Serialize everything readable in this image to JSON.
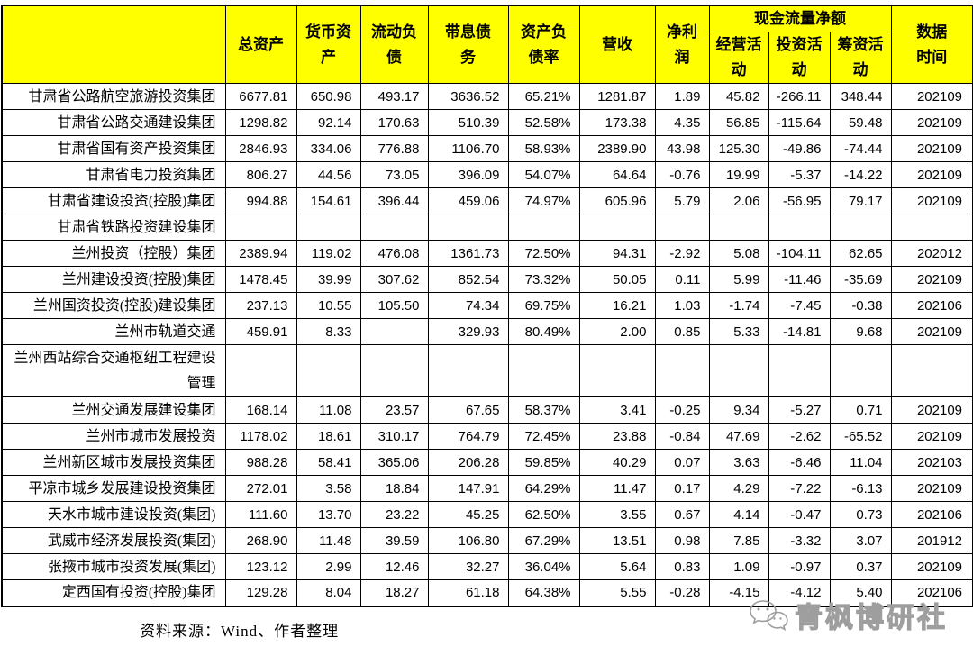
{
  "colors": {
    "header_bg": "#FFFF00",
    "border": "#000000",
    "text": "#000000",
    "watermark_gray": "#9E9E9E"
  },
  "table": {
    "corner_label": "",
    "headers": {
      "total_assets": "总资产",
      "monetary_funds": "货币资产",
      "current_liabilities": "流动负债",
      "interest_bearing_debt": "带息债务",
      "debt_ratio": "资产负债率",
      "revenue": "营收",
      "net_profit": "净利润",
      "cash_flow_group": "现金流量净额",
      "operating_activity": "经营活动",
      "investing_activity": "投资活动",
      "financing_activity": "筹资活动",
      "data_date": "数据时间"
    },
    "rows": [
      {
        "name": "甘肃省公路航空旅游投资集团",
        "values": [
          "6677.81",
          "650.98",
          "493.17",
          "3636.52",
          "65.21%",
          "1281.87",
          "1.89",
          "45.82",
          "-266.11",
          "348.44",
          "202109"
        ]
      },
      {
        "name": "甘肃省公路交通建设集团",
        "values": [
          "1298.82",
          "92.14",
          "170.63",
          "510.39",
          "52.58%",
          "173.38",
          "4.35",
          "56.85",
          "-115.64",
          "59.48",
          "202109"
        ]
      },
      {
        "name": "甘肃省国有资产投资集团",
        "values": [
          "2846.93",
          "334.06",
          "776.88",
          "1106.70",
          "58.93%",
          "2389.90",
          "43.98",
          "125.30",
          "-49.86",
          "-74.44",
          "202109"
        ]
      },
      {
        "name": "甘肃省电力投资集团",
        "values": [
          "806.27",
          "44.56",
          "73.05",
          "396.09",
          "54.07%",
          "64.64",
          "-0.76",
          "19.99",
          "-5.37",
          "-14.22",
          "202109"
        ]
      },
      {
        "name": "甘肃省建设投资(控股)集团",
        "values": [
          "994.88",
          "154.61",
          "396.44",
          "459.06",
          "74.97%",
          "605.96",
          "5.79",
          "2.06",
          "-56.95",
          "79.17",
          "202109"
        ]
      },
      {
        "name": "甘肃省铁路投资建设集团",
        "values": [
          "",
          "",
          "",
          "",
          "",
          "",
          "",
          "",
          "",
          "",
          ""
        ]
      },
      {
        "name": "兰州投资（控股）集团",
        "values": [
          "2389.94",
          "119.02",
          "476.08",
          "1361.73",
          "72.50%",
          "94.31",
          "-2.92",
          "5.08",
          "-104.11",
          "62.65",
          "202012"
        ]
      },
      {
        "name": "兰州建设投资(控股)集团",
        "values": [
          "1478.45",
          "39.99",
          "307.62",
          "852.54",
          "73.32%",
          "50.05",
          "0.11",
          "5.99",
          "-11.46",
          "-35.69",
          "202109"
        ]
      },
      {
        "name": "兰州国资投资(控股)建设集团",
        "values": [
          "237.13",
          "10.55",
          "105.50",
          "74.34",
          "69.75%",
          "16.21",
          "1.03",
          "-1.74",
          "-7.45",
          "-0.38",
          "202106"
        ]
      },
      {
        "name": "兰州市轨道交通",
        "values": [
          "459.91",
          "8.33",
          "",
          "329.93",
          "80.49%",
          "2.00",
          "0.85",
          "5.33",
          "-14.81",
          "9.68",
          "202109"
        ]
      },
      {
        "name": "兰州西站综合交通枢纽工程建设管理",
        "tall": true,
        "values": [
          "",
          "",
          "",
          "",
          "",
          "",
          "",
          "",
          "",
          "",
          ""
        ]
      },
      {
        "name": "兰州交通发展建设集团",
        "values": [
          "168.14",
          "11.08",
          "23.57",
          "67.65",
          "58.37%",
          "3.41",
          "-0.25",
          "9.34",
          "-5.27",
          "0.71",
          "202109"
        ]
      },
      {
        "name": "兰州市城市发展投资",
        "values": [
          "1178.02",
          "18.61",
          "310.17",
          "764.79",
          "72.45%",
          "23.88",
          "-0.84",
          "47.69",
          "-2.62",
          "-65.52",
          "202109"
        ]
      },
      {
        "name": "兰州新区城市发展投资集团",
        "values": [
          "988.28",
          "58.41",
          "365.06",
          "206.28",
          "59.85%",
          "40.29",
          "0.07",
          "3.63",
          "-6.46",
          "11.04",
          "202103"
        ]
      },
      {
        "name": "平凉市城乡发展建设投资集团",
        "values": [
          "272.01",
          "3.58",
          "18.84",
          "147.91",
          "64.29%",
          "11.47",
          "0.17",
          "4.29",
          "-7.22",
          "-6.13",
          "202109"
        ]
      },
      {
        "name": "天水市城市建设投资(集团)",
        "values": [
          "111.60",
          "13.70",
          "23.22",
          "45.25",
          "62.50%",
          "3.55",
          "0.67",
          "4.14",
          "-0.47",
          "0.73",
          "202106"
        ]
      },
      {
        "name": "武威市经济发展投资(集团)",
        "values": [
          "268.90",
          "11.48",
          "39.59",
          "106.80",
          "67.29%",
          "13.51",
          "0.98",
          "7.85",
          "-3.32",
          "3.07",
          "201912"
        ]
      },
      {
        "name": "张掖市城市投资发展(集团)",
        "values": [
          "123.12",
          "2.99",
          "12.46",
          "32.27",
          "36.04%",
          "5.64",
          "0.83",
          "1.09",
          "-0.97",
          "0.37",
          "202109"
        ]
      },
      {
        "name": "定西国有投资(控股)集团",
        "values": [
          "129.28",
          "8.04",
          "18.27",
          "61.18",
          "64.38%",
          "5.55",
          "-0.28",
          "-4.15",
          "-4.12",
          "5.40",
          "202106"
        ]
      }
    ]
  },
  "footer": {
    "source": "资料来源：Wind、作者整理"
  },
  "watermark": {
    "label": "青枫博研社"
  }
}
